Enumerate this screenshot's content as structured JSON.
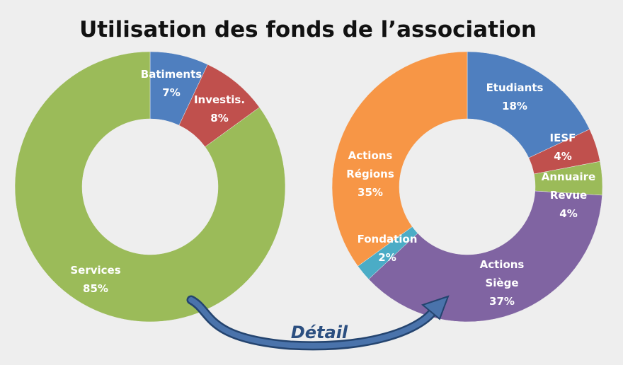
{
  "title": "Utilisation des fonds de l’association",
  "detail_label": "Détail",
  "chart_data": [
    {
      "type": "pie",
      "donut": true,
      "slices": [
        {
          "name": "Batiments",
          "value": 7,
          "label": "7%",
          "color": "#4f7fbf"
        },
        {
          "name": "Investis.",
          "value": 8,
          "label": "8%",
          "color": "#c0504d"
        },
        {
          "name": "Services",
          "value": 85,
          "label": "85%",
          "color": "#9bbb59"
        }
      ]
    },
    {
      "type": "pie",
      "donut": true,
      "slices": [
        {
          "name": "Etudiants",
          "value": 18,
          "label": "18%",
          "color": "#4f7fbf"
        },
        {
          "name": "IESF",
          "value": 4,
          "label": "4%",
          "color": "#c0504d"
        },
        {
          "name": "Annuaire Revue",
          "value": 4,
          "label": "4%",
          "color": "#9bbb59"
        },
        {
          "name": "Actions Siège",
          "value": 37,
          "label": "37%",
          "color": "#8064a2"
        },
        {
          "name": "Fondation",
          "value": 2,
          "label": "2%",
          "color": "#4bacc6"
        },
        {
          "name": "Actions Régions",
          "value": 35,
          "label": "35%",
          "color": "#f79646"
        }
      ]
    }
  ]
}
